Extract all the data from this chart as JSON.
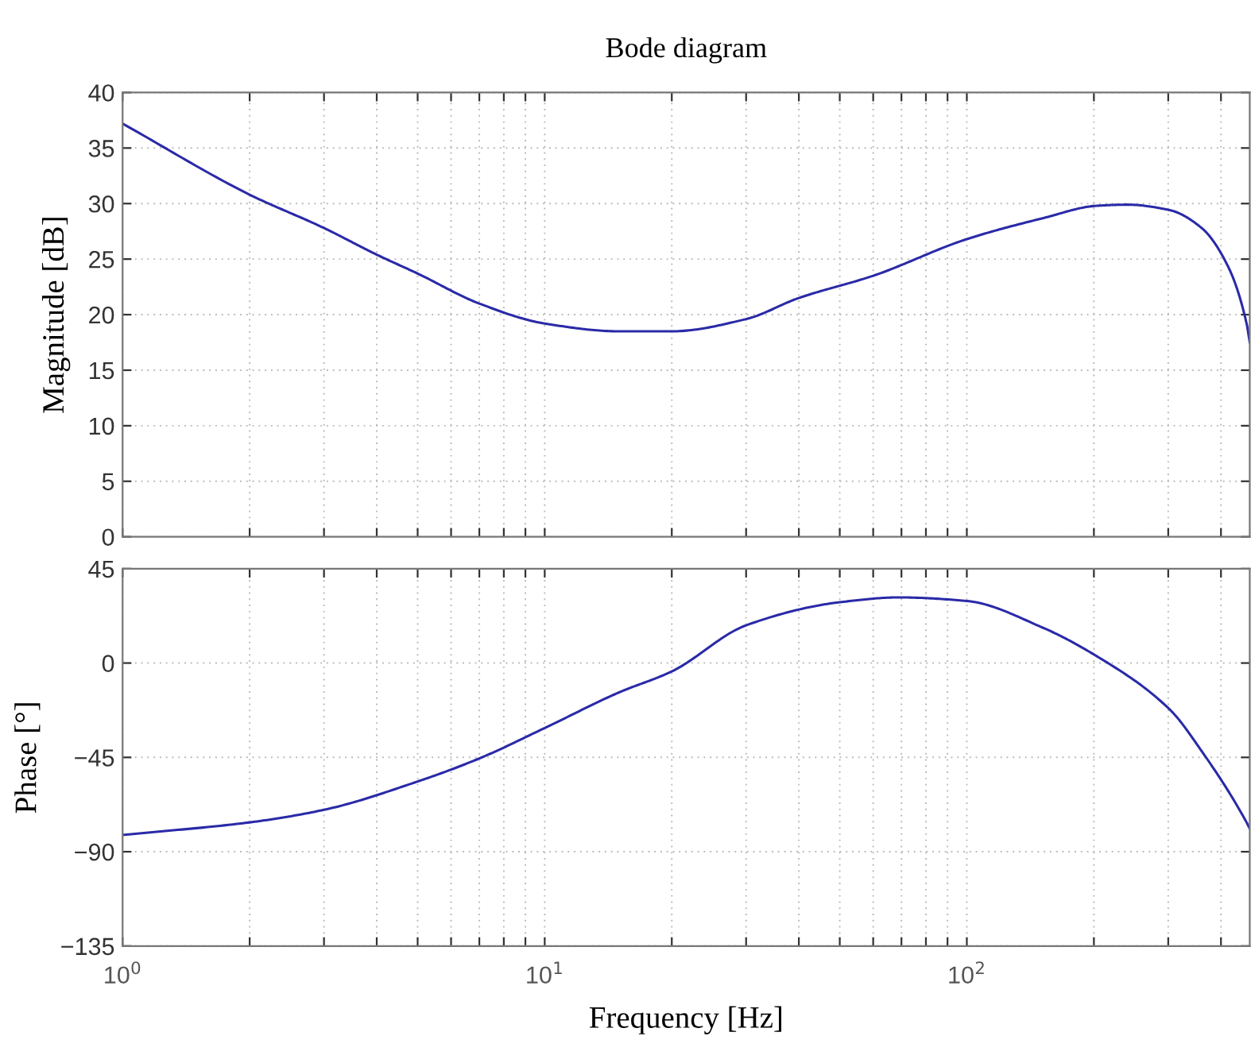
{
  "chart_data": [
    {
      "type": "line",
      "title": "Bode diagram",
      "ylabel": "Magnitude [dB]",
      "log": "x",
      "grid": true,
      "tick_labels": "y",
      "xlim": [
        1,
        468
      ],
      "ylim": [
        0,
        40
      ],
      "yticks": [
        0,
        5,
        10,
        15,
        20,
        25,
        30,
        35,
        40
      ],
      "xticks": [
        {
          "value": 1,
          "label": null
        },
        {
          "value": 2,
          "label": null
        },
        {
          "value": 3,
          "label": null
        },
        {
          "value": 4,
          "label": null
        },
        {
          "value": 5,
          "label": null
        },
        {
          "value": 6,
          "label": null
        },
        {
          "value": 7,
          "label": null
        },
        {
          "value": 8,
          "label": null
        },
        {
          "value": 9,
          "label": null
        },
        {
          "value": 10,
          "label": null
        },
        {
          "value": 20,
          "label": null
        },
        {
          "value": 30,
          "label": null
        },
        {
          "value": 40,
          "label": null
        },
        {
          "value": 50,
          "label": null
        },
        {
          "value": 60,
          "label": null
        },
        {
          "value": 70,
          "label": null
        },
        {
          "value": 80,
          "label": null
        },
        {
          "value": 90,
          "label": null
        },
        {
          "value": 100,
          "label": null
        },
        {
          "value": 200,
          "label": null
        },
        {
          "value": 300,
          "label": null
        },
        {
          "value": 400,
          "label": null
        }
      ],
      "series": [
        {
          "color": "#2a2aa8",
          "x": [
            1,
            2,
            3,
            4,
            5,
            7,
            10,
            15,
            20,
            30,
            40,
            60,
            100,
            152,
            203,
            240,
            303,
            360,
            415,
            460,
            468
          ],
          "values": [
            37.2,
            30.8,
            27.8,
            25.4,
            23.7,
            21.0,
            19.2,
            18.5,
            18.5,
            19.6,
            21.5,
            23.5,
            26.8,
            28.7,
            29.8,
            29.9,
            29.4,
            27.8,
            24.4,
            19.2,
            17.5
          ]
        }
      ]
    },
    {
      "type": "line",
      "ylabel": "Phase [°]",
      "xlabel": "Frequency [Hz]",
      "log": "x",
      "grid": true,
      "xlim": [
        1,
        468
      ],
      "ylim": [
        -135,
        45
      ],
      "yticks": [
        {
          "value": -135,
          "label": "−135"
        },
        {
          "value": -90,
          "label": "−90"
        },
        {
          "value": -45,
          "label": "−45"
        },
        0,
        45
      ],
      "xticks": [
        {
          "value": 1,
          "label": "10$^{0}$"
        },
        {
          "value": 2,
          "label": null
        },
        {
          "value": 3,
          "label": null
        },
        {
          "value": 4,
          "label": null
        },
        {
          "value": 5,
          "label": null
        },
        {
          "value": 6,
          "label": null
        },
        {
          "value": 7,
          "label": null
        },
        {
          "value": 8,
          "label": null
        },
        {
          "value": 9,
          "label": null
        },
        {
          "value": 10,
          "label": "10$^{1}$"
        },
        {
          "value": 20,
          "label": null
        },
        {
          "value": 30,
          "label": null
        },
        {
          "value": 40,
          "label": null
        },
        {
          "value": 50,
          "label": null
        },
        {
          "value": 60,
          "label": null
        },
        {
          "value": 70,
          "label": null
        },
        {
          "value": 80,
          "label": null
        },
        {
          "value": 90,
          "label": null
        },
        {
          "value": 100,
          "label": "10$^{2}$"
        },
        {
          "value": 200,
          "label": null
        },
        {
          "value": 300,
          "label": null
        },
        {
          "value": 400,
          "label": null
        }
      ],
      "series": [
        {
          "color": "#2a2aa8",
          "x": [
            1,
            2,
            3,
            5,
            7,
            10,
            15,
            20,
            30,
            50,
            69,
            100,
            152,
            203,
            303,
            360,
            460,
            468
          ],
          "values": [
            -82,
            -76,
            -70,
            -56.5,
            -45.5,
            -31,
            -14,
            -4,
            18,
            29,
            31.3,
            29.6,
            16.7,
            3.3,
            -22.3,
            -42,
            -76,
            -79
          ]
        }
      ]
    }
  ]
}
